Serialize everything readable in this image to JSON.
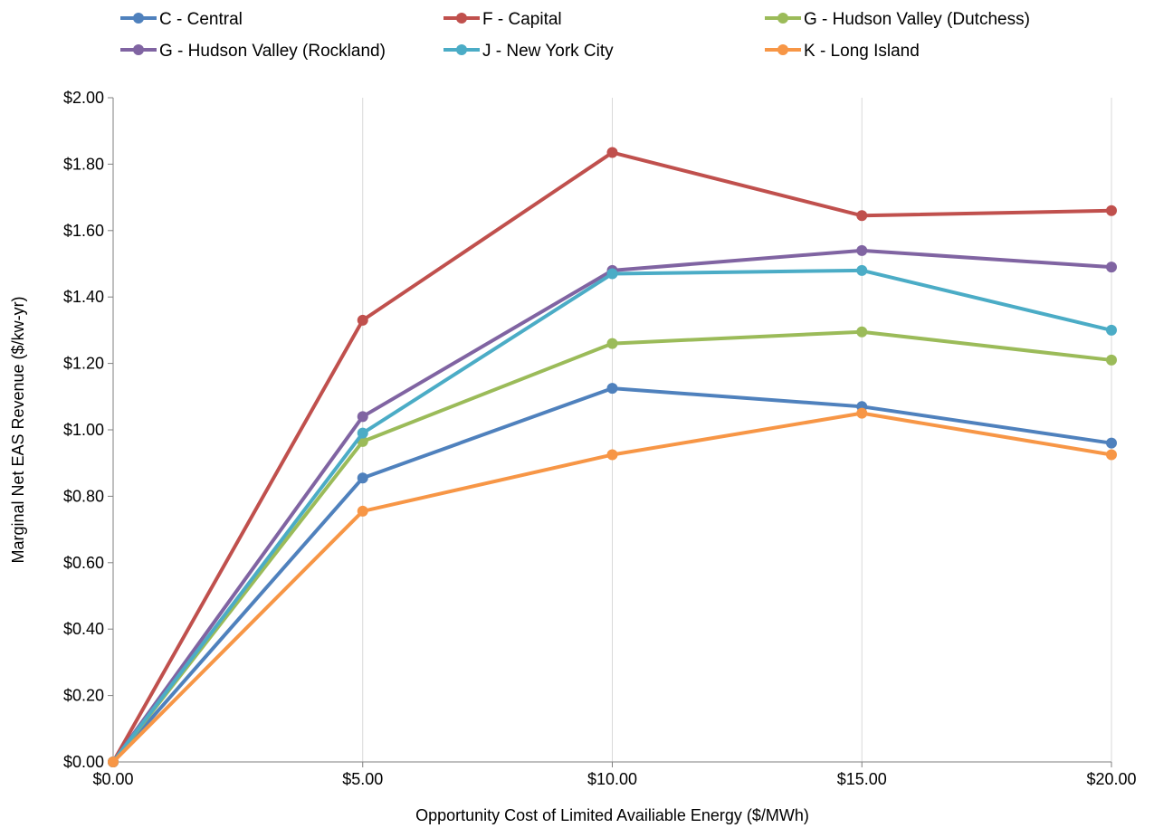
{
  "chart_data": {
    "type": "line",
    "x": [
      "$0.00",
      "$5.00",
      "$10.00",
      "$15.00",
      "$20.00"
    ],
    "x_values": [
      0,
      5,
      10,
      15,
      20
    ],
    "series": [
      {
        "name": "C - Central",
        "color": "#4F81BD",
        "values": [
          0.0,
          0.855,
          1.125,
          1.07,
          0.96
        ]
      },
      {
        "name": "F - Capital",
        "color": "#C0504D",
        "values": [
          0.0,
          1.33,
          1.835,
          1.645,
          1.66
        ]
      },
      {
        "name": "G - Hudson Valley (Dutchess)",
        "color": "#9BBB59",
        "values": [
          0.0,
          0.965,
          1.26,
          1.295,
          1.21
        ]
      },
      {
        "name": "G - Hudson Valley (Rockland)",
        "color": "#8064A2",
        "values": [
          0.0,
          1.04,
          1.48,
          1.54,
          1.49
        ]
      },
      {
        "name": "J - New York City",
        "color": "#4BACC6",
        "values": [
          0.0,
          0.99,
          1.47,
          1.48,
          1.3
        ]
      },
      {
        "name": "K - Long Island",
        "color": "#F79646",
        "values": [
          0.0,
          0.755,
          0.925,
          1.05,
          0.925
        ]
      }
    ],
    "y_ticks": [
      "$0.00",
      "$0.20",
      "$0.40",
      "$0.60",
      "$0.80",
      "$1.00",
      "$1.20",
      "$1.40",
      "$1.60",
      "$1.80",
      "$2.00"
    ],
    "ylim": [
      0,
      2
    ],
    "xlim": [
      0,
      20
    ],
    "xlabel": "Opportunity  Cost of Limited Availiable Energy ($/MWh)",
    "ylabel": "Marginal Net EAS Revenue  ($/kw-yr)",
    "grid": "vertical",
    "legend_position": "top"
  }
}
